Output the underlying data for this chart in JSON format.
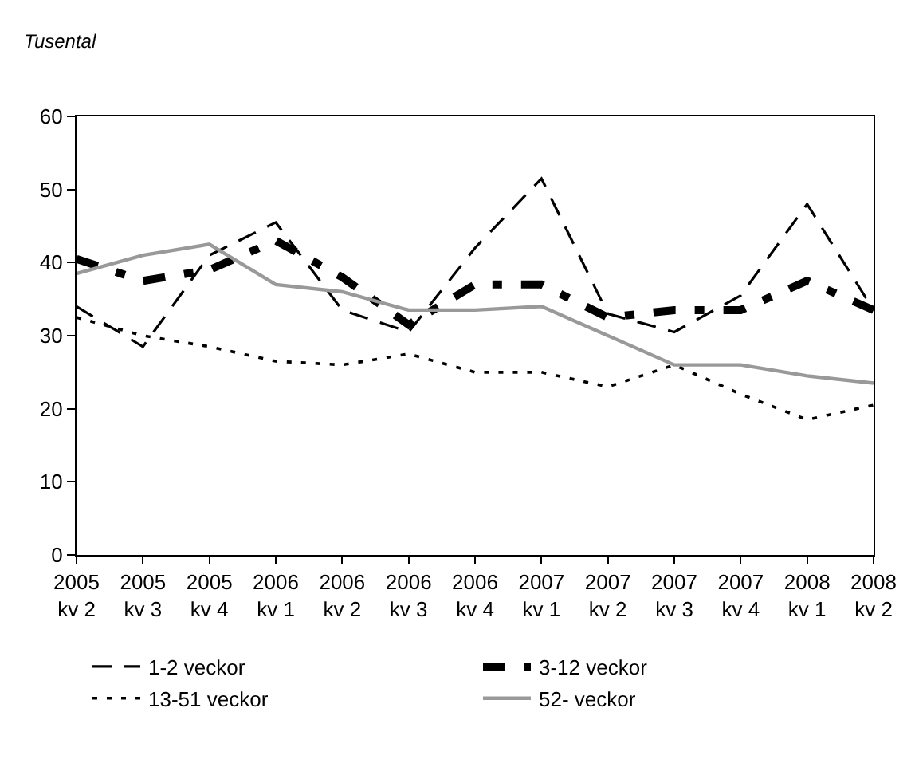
{
  "chart_data": {
    "type": "line",
    "ylabel": "Tusental",
    "categories": [
      "2005\nkv 2",
      "2005\nkv 3",
      "2005\nkv 4",
      "2006\nkv 1",
      "2006\nkv 2",
      "2006\nkv 3",
      "2006\nkv 4",
      "2007\nkv 1",
      "2007\nkv 2",
      "2007\nkv 3",
      "2007\nkv 4",
      "2008\nkv 1",
      "2008\nkv 2"
    ],
    "series": [
      {
        "name": "1-2 veckor",
        "color": "#000000",
        "line_style": "dashed",
        "values": [
          34,
          28.5,
          41,
          45.5,
          33.5,
          30.5,
          42,
          51.5,
          33,
          30.5,
          35.5,
          48,
          33.5
        ]
      },
      {
        "name": "3-12 veckor",
        "color": "#000000",
        "line_style": "dashed",
        "values": [
          40.5,
          37.5,
          39,
          43,
          38,
          31.5,
          37,
          37,
          32.5,
          33.5,
          33.5,
          37.5,
          33.5
        ]
      },
      {
        "name": "13-51 veckor",
        "color": "#000000",
        "line_style": "dotted",
        "values": [
          32.5,
          30,
          28.5,
          26.5,
          26,
          27.5,
          25,
          25,
          23,
          26,
          22,
          18.5,
          20.5
        ]
      },
      {
        "name": "52- veckor",
        "color": "#999999",
        "line_style": "solid",
        "values": [
          38.5,
          41,
          42.5,
          37,
          36,
          33.5,
          33.5,
          34,
          30,
          26,
          26,
          24.5,
          23.5
        ]
      }
    ],
    "ylim": [
      0,
      60
    ],
    "yticks": [
      0,
      10,
      20,
      30,
      40,
      50,
      60
    ],
    "grid": false,
    "legend": "bottom",
    "marker": "none"
  }
}
